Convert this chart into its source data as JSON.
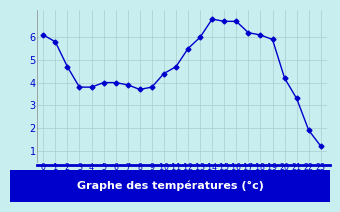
{
  "hours": [
    0,
    1,
    2,
    3,
    4,
    5,
    6,
    7,
    8,
    9,
    10,
    11,
    12,
    13,
    14,
    15,
    16,
    17,
    18,
    19,
    20,
    21,
    22,
    23
  ],
  "temps": [
    6.1,
    5.8,
    4.7,
    3.8,
    3.8,
    4.0,
    4.0,
    3.9,
    3.7,
    3.8,
    4.4,
    4.7,
    5.5,
    6.0,
    6.8,
    6.7,
    6.7,
    6.2,
    6.1,
    5.9,
    4.2,
    3.3,
    1.9,
    1.2
  ],
  "line_color": "#0000cc",
  "marker": "D",
  "marker_size": 2.5,
  "bg_color": "#c8eef0",
  "grid_color": "#aacccc",
  "xlabel": "Graphe des températures (°c)",
  "xlabel_color": "#ffffff",
  "xlabel_bg": "#0000cc",
  "xlabel_fontsize": 8,
  "tick_color": "#0000cc",
  "tick_fontsize": 6,
  "ytick_fontsize": 7,
  "ylim": [
    0.5,
    7.2
  ],
  "xlim": [
    -0.5,
    23.5
  ],
  "yticks": [
    1,
    2,
    3,
    4,
    5,
    6
  ],
  "xticks": [
    0,
    1,
    2,
    3,
    4,
    5,
    6,
    7,
    8,
    9,
    10,
    11,
    12,
    13,
    14,
    15,
    16,
    17,
    18,
    19,
    20,
    21,
    22,
    23
  ]
}
